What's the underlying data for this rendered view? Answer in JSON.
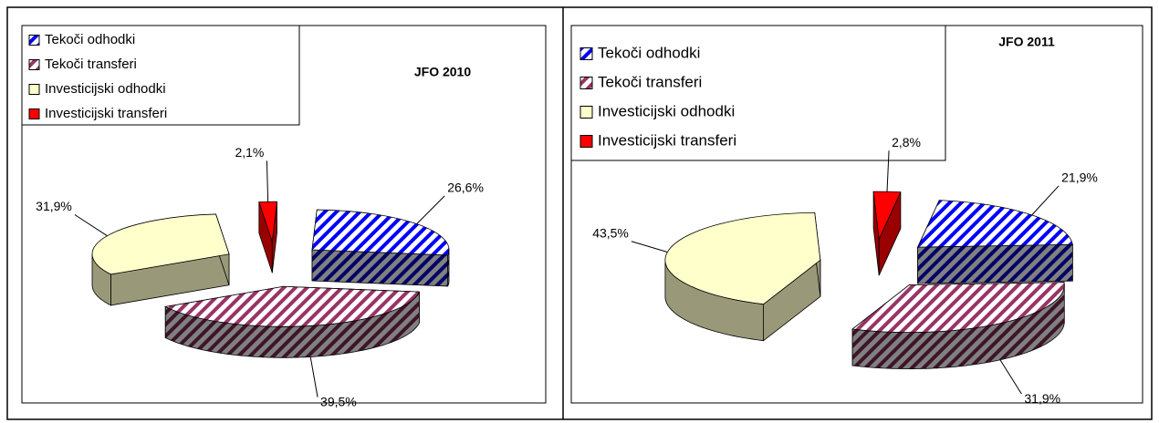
{
  "chart_data": [
    {
      "type": "pie",
      "title": "JFO 2010",
      "categories": [
        "Tekoči odhodki",
        "Tekoči transferi",
        "Investicijski odhodki",
        "Investicijski transferi"
      ],
      "values": [
        26.6,
        39.5,
        31.9,
        2.1
      ],
      "value_labels": [
        "26,6%",
        "39,5%",
        "31,9%",
        "2,1%"
      ],
      "colors": [
        "#0000ff",
        "#993366",
        "#ffffcc",
        "#ff0000"
      ],
      "hatch": [
        true,
        true,
        false,
        false
      ]
    },
    {
      "type": "pie",
      "title": "JFO 2011",
      "categories": [
        "Tekoči odhodki",
        "Tekoči transferi",
        "Investicijski odhodki",
        "Investicijski transferi"
      ],
      "values": [
        21.9,
        31.9,
        43.5,
        2.8
      ],
      "value_labels": [
        "21,9%",
        "31,9%",
        "43,5%",
        "2,8%"
      ],
      "colors": [
        "#0000ff",
        "#993366",
        "#ffffcc",
        "#ff0000"
      ],
      "hatch": [
        true,
        true,
        false,
        false
      ]
    }
  ]
}
